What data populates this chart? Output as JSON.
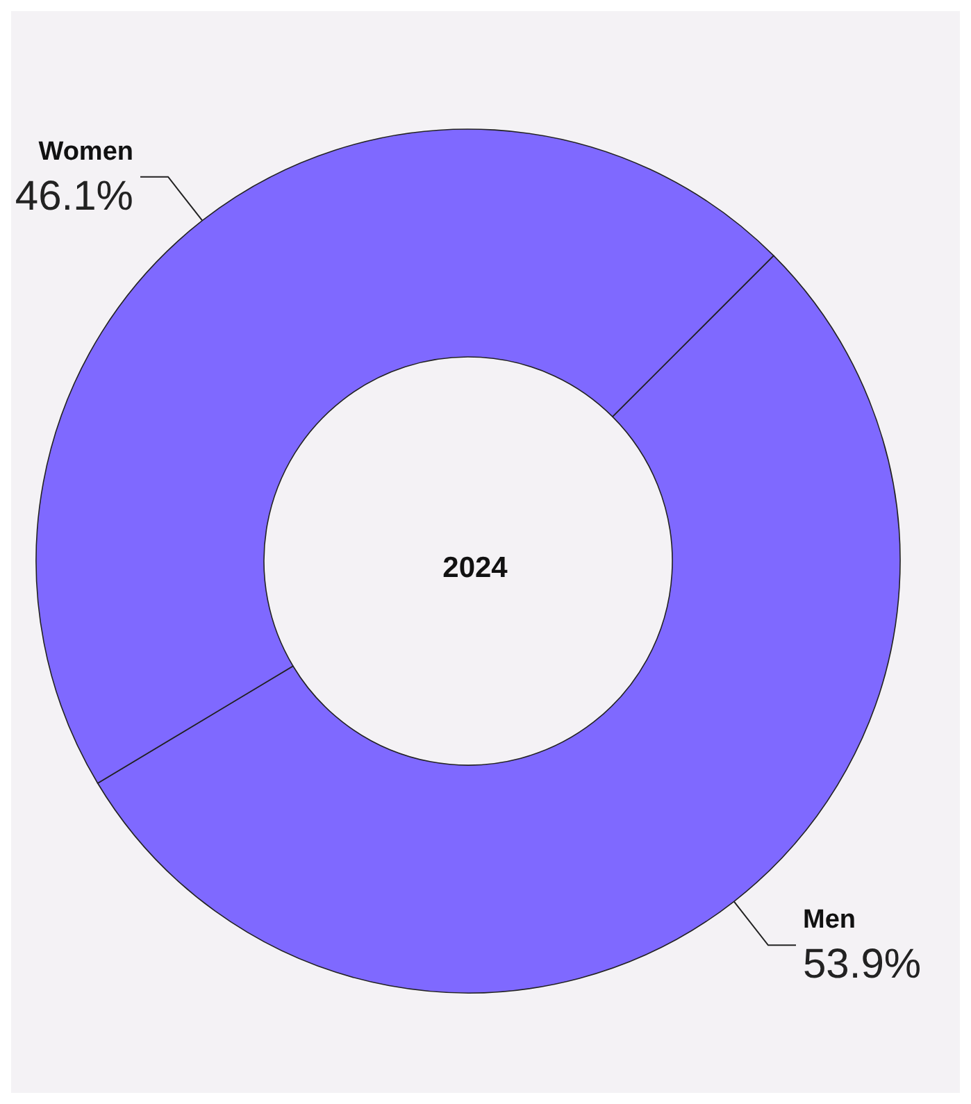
{
  "chart_data": {
    "type": "donut",
    "title": "2024",
    "categories": [
      "Men",
      "Women"
    ],
    "values": [
      53.9,
      46.1
    ],
    "colors": [
      "#7f69ff",
      "#7f69ff"
    ],
    "value_labels": [
      "53.9%",
      "46.1%"
    ],
    "legend": false
  }
}
